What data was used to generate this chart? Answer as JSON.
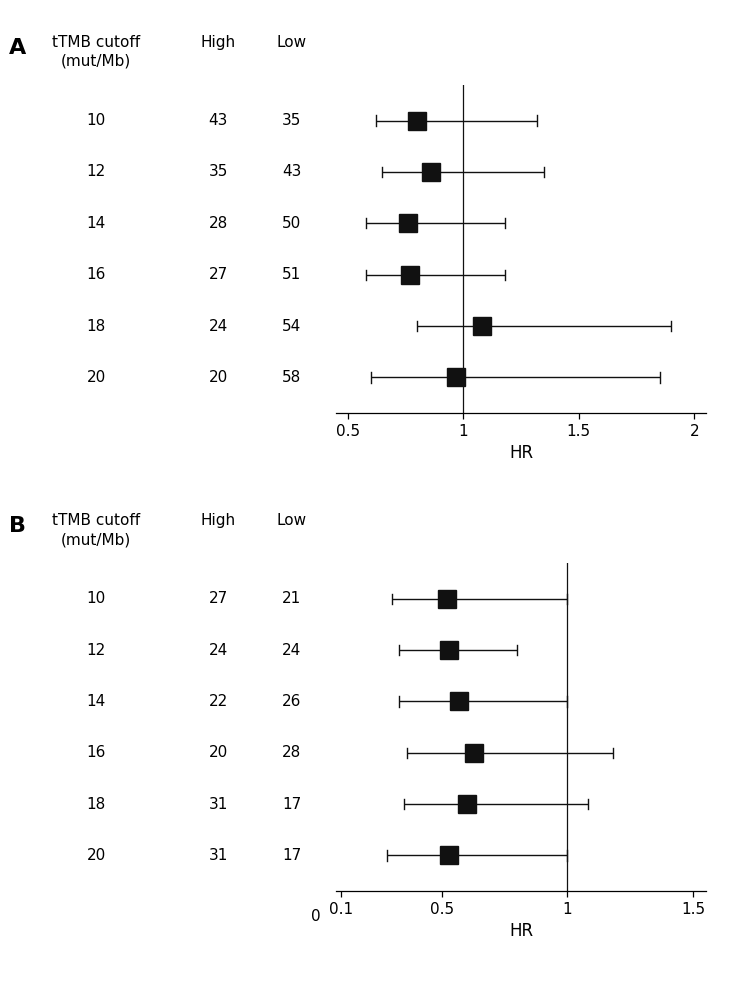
{
  "panel_A": {
    "label": "A",
    "cutoffs": [
      10,
      12,
      14,
      16,
      18,
      20
    ],
    "high": [
      43,
      35,
      28,
      27,
      24,
      20
    ],
    "low": [
      35,
      43,
      50,
      51,
      54,
      58
    ],
    "hr": [
      0.8,
      0.86,
      0.76,
      0.77,
      1.08,
      0.97
    ],
    "ci_lo": [
      0.62,
      0.65,
      0.58,
      0.58,
      0.8,
      0.6
    ],
    "ci_hi": [
      1.32,
      1.35,
      1.18,
      1.18,
      1.9,
      1.85
    ],
    "ref_line": 1.0,
    "xlim": [
      0.45,
      2.05
    ],
    "xticks": [
      0.5,
      1.0,
      1.5,
      2.0
    ],
    "xticklabels": [
      "0.5",
      "1",
      "1.5",
      "2"
    ],
    "xlabel": "HR"
  },
  "panel_B": {
    "label": "B",
    "cutoffs": [
      10,
      12,
      14,
      16,
      18,
      20
    ],
    "high": [
      27,
      24,
      22,
      20,
      31,
      31
    ],
    "low": [
      21,
      24,
      26,
      28,
      17,
      17
    ],
    "hr": [
      0.52,
      0.53,
      0.57,
      0.63,
      0.6,
      0.53
    ],
    "ci_lo": [
      0.3,
      0.33,
      0.33,
      0.36,
      0.35,
      0.28
    ],
    "ci_hi": [
      1.0,
      0.8,
      1.0,
      1.18,
      1.08,
      1.0
    ],
    "ref_line": 1.0,
    "xlim": [
      0.08,
      1.55
    ],
    "xticks": [
      0.1,
      0.5,
      1.0,
      1.5
    ],
    "xticklabels": [
      "0.1",
      "0.5",
      "1",
      "1.5"
    ],
    "xlabel": "HR"
  },
  "col_header_cutoff": "tTMB cutoff\n(mut/Mb)",
  "col_header_high": "High",
  "col_header_low": "Low",
  "box_color": "#111111",
  "line_color": "#111111",
  "fontsize": 11,
  "fontsize_bold": 16
}
